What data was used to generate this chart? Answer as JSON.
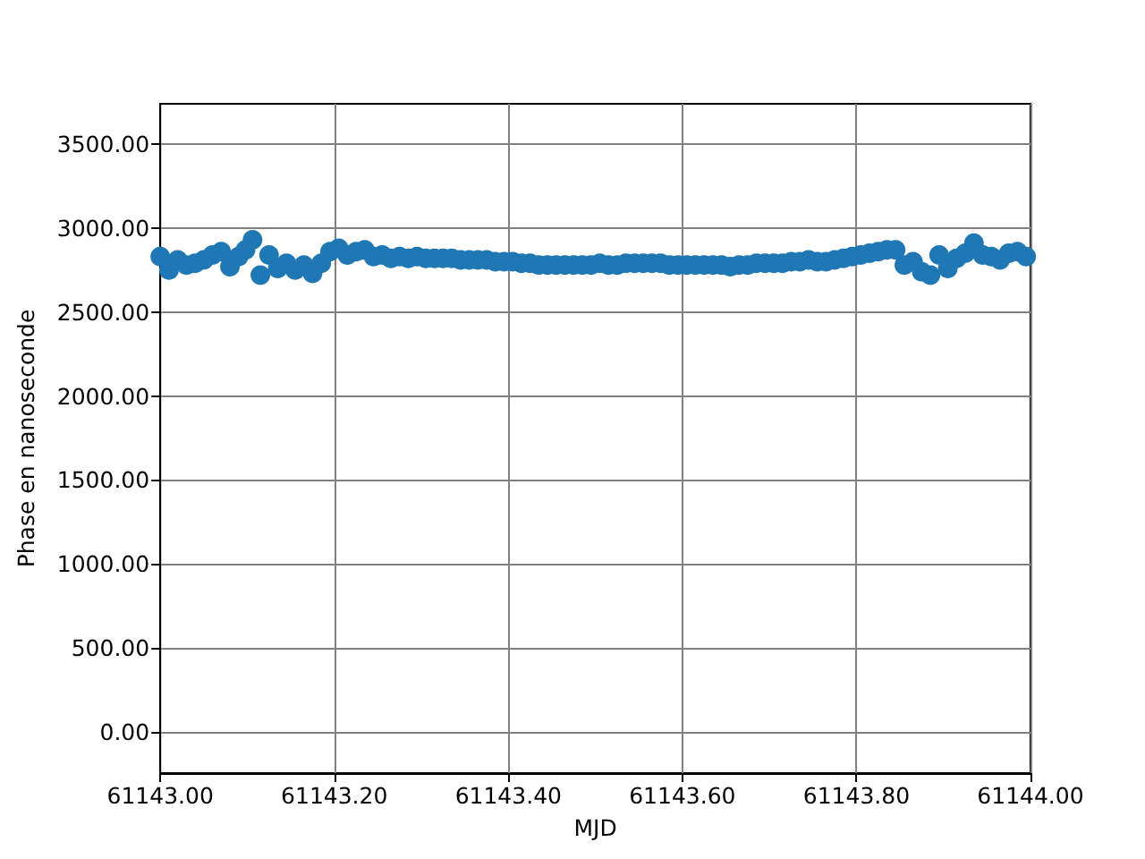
{
  "chart_data": {
    "type": "scatter",
    "xlabel": "MJD",
    "ylabel": "Phase en nanoseconde",
    "xlim": [
      61143,
      61144
    ],
    "xticks": [
      {
        "value": 61143,
        "label": "61143.00"
      },
      {
        "value": 61143.2,
        "label": "61143.20"
      },
      {
        "value": 61143.4,
        "label": "61143.40"
      },
      {
        "value": 61143.6,
        "label": "61143.60"
      },
      {
        "value": 61143.8,
        "label": "61143.80"
      },
      {
        "value": 61144,
        "label": "61144.00"
      }
    ],
    "ylim": [
      -245,
      3740
    ],
    "yticks": [
      {
        "value": 0,
        "label": "0.00"
      },
      {
        "value": 500,
        "label": "500.00"
      },
      {
        "value": 1000,
        "label": "1000.00"
      },
      {
        "value": 1500,
        "label": "1500.00"
      },
      {
        "value": 2000,
        "label": "2000.00"
      },
      {
        "value": 2500,
        "label": "2500.00"
      },
      {
        "value": 3000,
        "label": "3000.00"
      },
      {
        "value": 3500,
        "label": "3500.00"
      }
    ],
    "grid": true,
    "marker": "circle",
    "series": [
      {
        "color": "#1f77b4",
        "x": [
          61143.0,
          61143.01,
          61143.02,
          61143.03,
          61143.04,
          61143.05,
          61143.06,
          61143.07,
          61143.08,
          61143.09,
          61143.098,
          61143.106,
          61143.115,
          61143.125,
          61143.135,
          61143.145,
          61143.155,
          61143.165,
          61143.175,
          61143.185,
          61143.195,
          61143.205,
          61143.215,
          61143.225,
          61143.235,
          61143.245,
          61143.255,
          61143.265,
          61143.275,
          61143.285,
          61143.295,
          61143.305,
          61143.315,
          61143.325,
          61143.335,
          61143.345,
          61143.355,
          61143.365,
          61143.375,
          61143.385,
          61143.395,
          61143.405,
          61143.415,
          61143.425,
          61143.435,
          61143.445,
          61143.455,
          61143.465,
          61143.475,
          61143.485,
          61143.495,
          61143.505,
          61143.515,
          61143.525,
          61143.535,
          61143.545,
          61143.555,
          61143.565,
          61143.575,
          61143.585,
          61143.595,
          61143.605,
          61143.615,
          61143.625,
          61143.635,
          61143.645,
          61143.655,
          61143.665,
          61143.675,
          61143.685,
          61143.695,
          61143.705,
          61143.715,
          61143.725,
          61143.735,
          61143.745,
          61143.755,
          61143.765,
          61143.775,
          61143.785,
          61143.795,
          61143.805,
          61143.815,
          61143.825,
          61143.835,
          61143.845,
          61143.855,
          61143.865,
          61143.875,
          61143.885,
          61143.895,
          61143.905,
          61143.915,
          61143.925,
          61143.935,
          61143.945,
          61143.955,
          61143.965,
          61143.975,
          61143.985,
          61143.995
        ],
        "values": [
          2830,
          2750,
          2810,
          2780,
          2790,
          2810,
          2840,
          2860,
          2770,
          2830,
          2870,
          2930,
          2720,
          2840,
          2760,
          2790,
          2750,
          2780,
          2730,
          2790,
          2860,
          2880,
          2840,
          2860,
          2870,
          2830,
          2840,
          2820,
          2830,
          2820,
          2830,
          2820,
          2820,
          2820,
          2820,
          2810,
          2810,
          2810,
          2810,
          2800,
          2800,
          2800,
          2790,
          2790,
          2780,
          2780,
          2780,
          2780,
          2780,
          2780,
          2780,
          2790,
          2780,
          2780,
          2790,
          2790,
          2790,
          2790,
          2790,
          2780,
          2780,
          2780,
          2780,
          2780,
          2780,
          2780,
          2770,
          2780,
          2780,
          2790,
          2790,
          2790,
          2790,
          2800,
          2800,
          2810,
          2800,
          2800,
          2810,
          2820,
          2830,
          2840,
          2850,
          2860,
          2870,
          2870,
          2780,
          2800,
          2740,
          2720,
          2840,
          2760,
          2820,
          2850,
          2910,
          2840,
          2830,
          2810,
          2850,
          2860,
          2830
        ]
      }
    ]
  }
}
